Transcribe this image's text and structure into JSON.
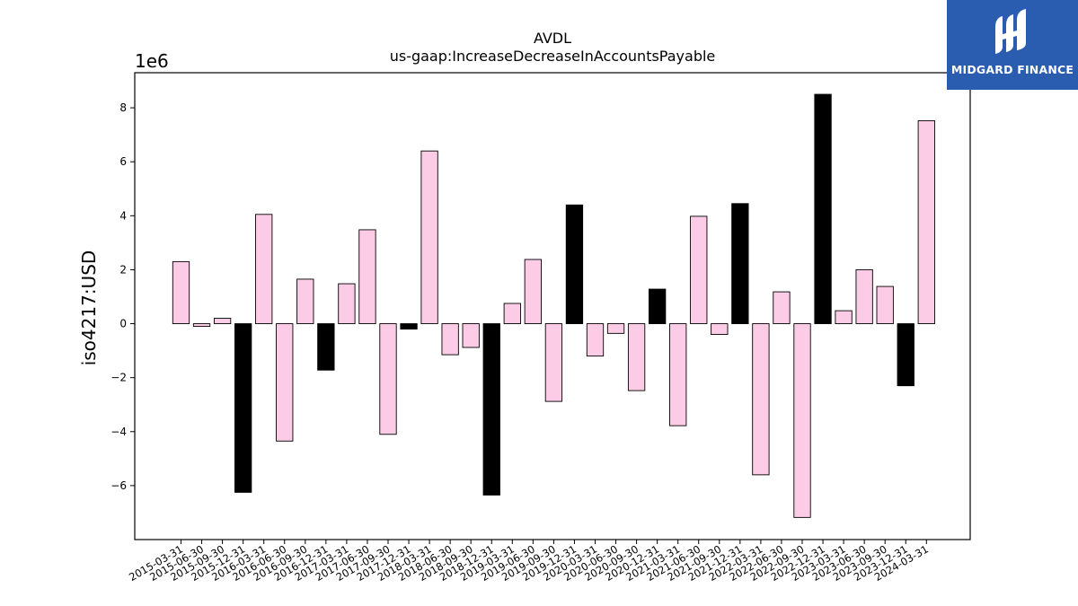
{
  "chart_data": {
    "type": "bar",
    "title": "AVDL",
    "subtitle": "us-gaap:IncreaseDecreaseInAccountsPayable",
    "ylabel": "iso4217:USD",
    "xlabel": "",
    "offset_label": "1e6",
    "y_scale": 1000000,
    "ylim": [
      -8.0,
      9.3
    ],
    "yticks": [
      -6,
      -4,
      -2,
      0,
      2,
      4,
      6,
      8
    ],
    "grid": false,
    "categories": [
      "2015-03-31",
      "2015-06-30",
      "2015-09-30",
      "2015-12-31",
      "2016-03-31",
      "2016-06-30",
      "2016-09-30",
      "2016-12-31",
      "2017-03-31",
      "2017-06-30",
      "2017-09-30",
      "2017-12-31",
      "2018-03-31",
      "2018-06-30",
      "2018-09-30",
      "2018-12-31",
      "2019-03-31",
      "2019-06-30",
      "2019-09-30",
      "2019-12-31",
      "2020-03-31",
      "2020-06-30",
      "2020-09-30",
      "2020-12-31",
      "2021-03-31",
      "2021-06-30",
      "2021-09-30",
      "2021-12-31",
      "2022-03-31",
      "2022-06-30",
      "2022-09-30",
      "2022-12-31",
      "2023-03-31",
      "2023-06-30",
      "2023-09-30",
      "2023-12-31",
      "2024-03-31"
    ],
    "values": [
      2.3,
      -0.1,
      0.2,
      -6.25,
      4.05,
      -4.35,
      1.65,
      -1.72,
      1.48,
      3.48,
      -4.1,
      -0.2,
      6.4,
      -1.15,
      -0.88,
      -6.35,
      0.75,
      2.38,
      -2.88,
      4.4,
      -1.2,
      -0.36,
      -2.48,
      1.28,
      -3.78,
      3.98,
      -0.4,
      4.45,
      -5.6,
      1.18,
      -7.18,
      8.5,
      0.48,
      2.0,
      1.38,
      -2.3,
      7.52
    ],
    "highlight": [
      false,
      false,
      false,
      true,
      false,
      false,
      false,
      true,
      false,
      false,
      false,
      true,
      false,
      false,
      false,
      true,
      false,
      false,
      false,
      true,
      false,
      false,
      false,
      true,
      false,
      false,
      false,
      true,
      false,
      false,
      false,
      true,
      false,
      false,
      false,
      true,
      false
    ],
    "colors": {
      "normal": "#fccce6",
      "highlight": "#000000",
      "edge": "#000000"
    }
  },
  "branding": {
    "name": "MIDGARD FINANCE",
    "logo_icon": "midgard-logo-icon",
    "background": "#2a5db0"
  }
}
